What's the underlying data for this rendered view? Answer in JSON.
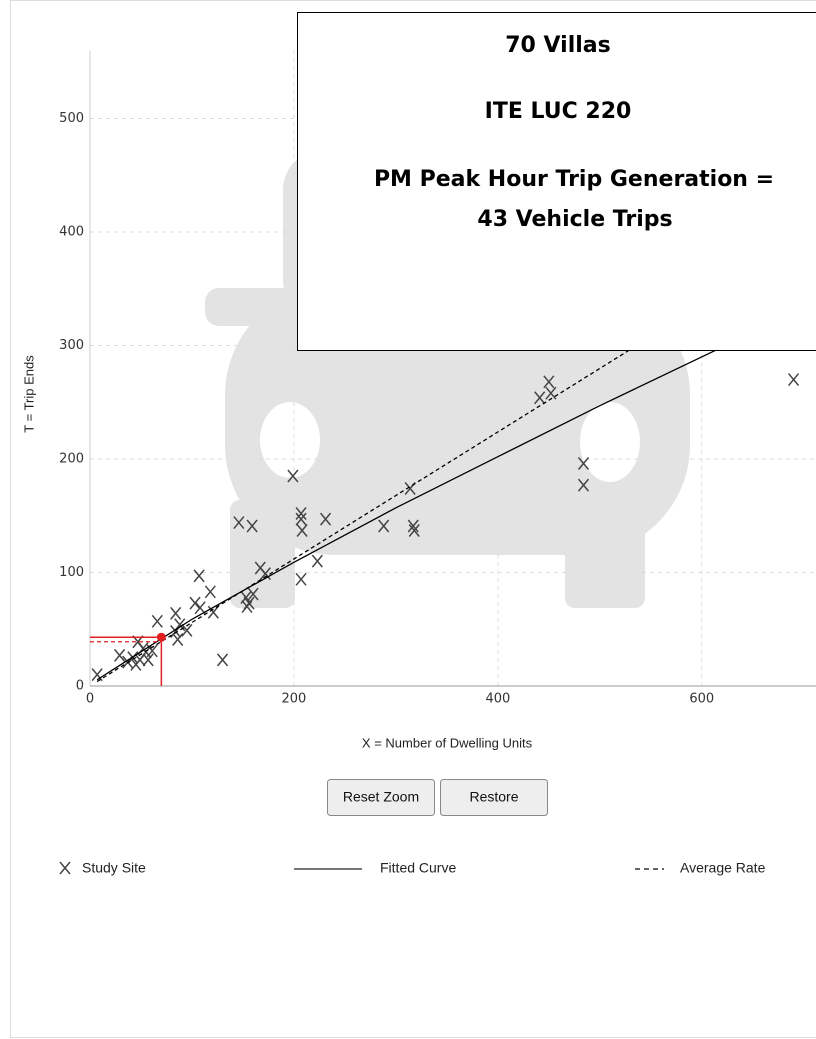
{
  "chart_data": {
    "type": "scatter",
    "x_label": "X = Number of Dwelling Units",
    "y_label": "T = Trip Ends",
    "xlim": [
      0,
      712
    ],
    "ylim": [
      0,
      560
    ],
    "xticks": [
      0,
      200,
      400,
      600
    ],
    "yticks": [
      0,
      100,
      200,
      300,
      400,
      500
    ],
    "grid": true,
    "series": [
      {
        "name": "Study Site",
        "color": "#444444",
        "x": [
          7,
          29,
          37,
          42,
          45,
          49,
          47,
          52,
          55,
          57,
          61,
          66,
          84,
          84,
          86,
          88,
          95,
          103,
          107,
          108,
          118,
          121,
          130,
          146,
          153,
          154,
          156,
          159,
          160,
          167,
          172,
          199,
          207,
          207,
          208,
          207,
          223,
          231,
          288,
          314,
          317,
          318,
          441,
          450,
          452,
          484,
          484,
          690
        ],
        "values": [
          10,
          27,
          21,
          25,
          19,
          23,
          39,
          33,
          30,
          23,
          31,
          57,
          64,
          48,
          41,
          54,
          49,
          73,
          97,
          69,
          83,
          65,
          23,
          144,
          78,
          70,
          73,
          141,
          81,
          104,
          99,
          185,
          152,
          147,
          137,
          94,
          110,
          147,
          141,
          174,
          141,
          137,
          254,
          268,
          258,
          196,
          177,
          270
        ]
      },
      {
        "name": "Fitted Curve",
        "color": "#000000",
        "x": [
          7,
          100,
          200,
          300,
          400,
          500,
          614
        ],
        "values": [
          5.5,
          58.8,
          109,
          157,
          202,
          247,
          296
        ]
      },
      {
        "name": "Average Rate",
        "color": "#000000",
        "x": [
          7,
          529
        ],
        "values": [
          3.9,
          296
        ]
      }
    ],
    "selected": {
      "x": 70,
      "y": 43,
      "avg_y": 39,
      "color": "#e02020"
    },
    "annotation": [
      "70 Villas",
      "ITE LUC 220",
      "PM Peak Hour Trip Generation =",
      "43 Vehicle Trips"
    ]
  },
  "buttons": [
    "Reset Zoom",
    "Restore"
  ]
}
